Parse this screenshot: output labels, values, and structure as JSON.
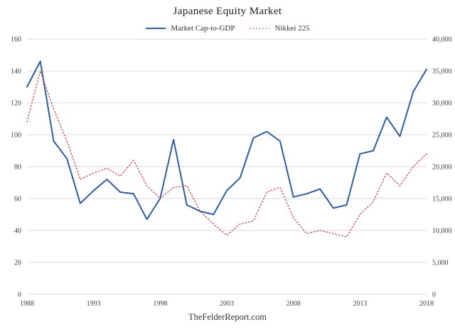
{
  "title": "Japanese Equity Market",
  "source": "TheFelderReport.com",
  "colors": {
    "market_cap_line": "#2e5c9e",
    "nikkei_line": "#cc4444",
    "gridline": "#d8d8d8",
    "tick_text": "#404040"
  },
  "chart_data": {
    "type": "line",
    "title": "Japanese Equity Market",
    "x": [
      1988,
      1989,
      1990,
      1991,
      1992,
      1993,
      1994,
      1995,
      1996,
      1997,
      1998,
      1999,
      2000,
      2001,
      2002,
      2003,
      2004,
      2005,
      2006,
      2007,
      2008,
      2009,
      2010,
      2011,
      2012,
      2013,
      2014,
      2015,
      2016,
      2017,
      2018
    ],
    "x_ticks": [
      1988,
      1993,
      1998,
      2003,
      2008,
      2013,
      2018
    ],
    "left_axis": {
      "min": 0,
      "max": 160,
      "step": 20
    },
    "right_axis": {
      "min": 0,
      "max": 40000,
      "step": 5000
    },
    "grid": true,
    "legend_position": "top",
    "series": [
      {
        "name": "Market Cap-to-GDP",
        "axis": "left",
        "color": "#2e5c9e",
        "style": "solid",
        "width": 2,
        "dash": "",
        "values": [
          130,
          146,
          96,
          85,
          57,
          65,
          72,
          64,
          63,
          47,
          60,
          97,
          56,
          52,
          50,
          65,
          73,
          98,
          102,
          96,
          61,
          63,
          66,
          54,
          56,
          88,
          90,
          111,
          99,
          127,
          141
        ]
      },
      {
        "name": "Nikkei 225",
        "axis": "right",
        "color": "#cc4444",
        "style": "dotted",
        "width": 1.3,
        "dash": "1.5,3",
        "values": [
          27000,
          35000,
          29000,
          24000,
          18000,
          19000,
          19750,
          18500,
          21000,
          17000,
          15000,
          16750,
          17000,
          13000,
          11000,
          9250,
          11000,
          11500,
          16000,
          16750,
          12000,
          9500,
          10000,
          9500,
          9000,
          12500,
          14500,
          19000,
          17000,
          20000,
          22000
        ]
      }
    ]
  }
}
